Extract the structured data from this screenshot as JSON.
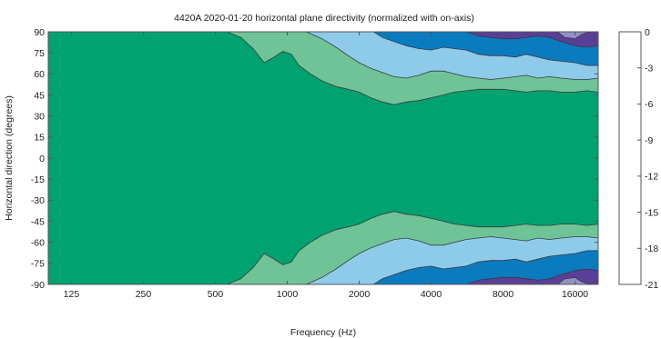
{
  "chart_data": {
    "type": "heatmap",
    "subtype": "filled-contour",
    "title": "4420A 2020-01-20 horizontal plane directivity (normalized with on-axis)",
    "xlabel": "Frequency (Hz)",
    "ylabel": "Horizontal direction (degrees)",
    "x_scale": "log",
    "xlim": [
      100,
      20000
    ],
    "ylim": [
      -90,
      90
    ],
    "x_ticks": [
      125,
      250,
      500,
      1000,
      2000,
      4000,
      8000,
      16000
    ],
    "x_tick_labels": [
      "125",
      "250",
      "500",
      "1000",
      "2000",
      "4000",
      "8000",
      "16000"
    ],
    "y_ticks": [
      90,
      75,
      60,
      45,
      30,
      15,
      0,
      -15,
      -30,
      -45,
      -60,
      -75,
      -90
    ],
    "y_tick_labels": [
      "90",
      "75",
      "60",
      "45",
      "30",
      "15",
      "0",
      "-15",
      "-30",
      "-45",
      "-60",
      "-75",
      "-90"
    ],
    "colorbar": {
      "ticks": [
        0,
        -3,
        -6,
        -9,
        -12,
        -15,
        -18,
        -21
      ],
      "tick_labels": [
        "0",
        "-3",
        "-6",
        "-9",
        "-12",
        "-15",
        "-18",
        "-21"
      ],
      "bands": [
        {
          "range": [
            -3,
            0
          ],
          "color": "#00a270"
        },
        {
          "range": [
            -6,
            -3
          ],
          "color": "#6fc497"
        },
        {
          "range": [
            -9,
            -6
          ],
          "color": "#8ecbea"
        },
        {
          "range": [
            -12,
            -9
          ],
          "color": "#0b7bc0"
        },
        {
          "range": [
            -15,
            -12
          ],
          "color": "#5a3f98"
        },
        {
          "range": [
            -18,
            -15
          ],
          "color": "#9191c7"
        },
        {
          "range": [
            -21,
            -18
          ],
          "color": "#bdbdbd"
        }
      ]
    },
    "contours": {
      "note": "angle (deg) at which each level boundary sits, per frequency (Hz)",
      "-3": {
        "x": [
          560,
          640,
          720,
          800,
          880,
          960,
          1040,
          1120,
          1250,
          1400,
          1600,
          1800,
          2000,
          2240,
          2500,
          2800,
          3150,
          3550,
          4000,
          4500,
          5000,
          5600,
          6300,
          7100,
          8000,
          9000,
          10000,
          11200,
          12500,
          14000,
          16000,
          18000,
          20000
        ],
        "y": [
          90,
          86,
          78,
          68,
          72,
          76,
          74,
          66,
          60,
          55,
          51,
          49,
          47,
          43,
          40,
          38,
          40,
          41,
          43,
          45,
          47,
          48,
          49,
          49,
          49,
          48,
          47,
          48,
          48,
          47,
          47,
          48,
          47
        ]
      },
      "-6": {
        "x": [
          1200,
          1400,
          1600,
          1800,
          2000,
          2240,
          2500,
          2800,
          3150,
          3550,
          4000,
          4500,
          5000,
          5600,
          6300,
          7100,
          8000,
          9000,
          10000,
          11200,
          12500,
          14000,
          16000,
          18000,
          20000
        ],
        "y": [
          90,
          85,
          79,
          73,
          68,
          64,
          61,
          58,
          57,
          59,
          62,
          62,
          60,
          58,
          57,
          56,
          57,
          58,
          59,
          57,
          58,
          57,
          56,
          56,
          57
        ]
      },
      "-9": {
        "x": [
          2300,
          2500,
          2800,
          3150,
          3550,
          4000,
          4500,
          5000,
          5600,
          6300,
          7100,
          8000,
          9000,
          10000,
          11200,
          12500,
          14000,
          16000,
          18000,
          20000
        ],
        "y": [
          90,
          86,
          83,
          80,
          78,
          77,
          79,
          78,
          77,
          74,
          73,
          73,
          72,
          74,
          72,
          70,
          69,
          68,
          66,
          66
        ]
      },
      "-12": {
        "x": [
          5600,
          6300,
          7100,
          8000,
          9000,
          10000,
          11200,
          12500,
          14000,
          16000,
          18000,
          20000
        ],
        "y": [
          90,
          87,
          86,
          85,
          85,
          86,
          87,
          86,
          83,
          80,
          79,
          80
        ]
      },
      "-15": {
        "x": [
          13500,
          14500,
          16000,
          17000,
          18500,
          20000
        ],
        "y": [
          90,
          86,
          85,
          88,
          90,
          90
        ]
      }
    }
  }
}
